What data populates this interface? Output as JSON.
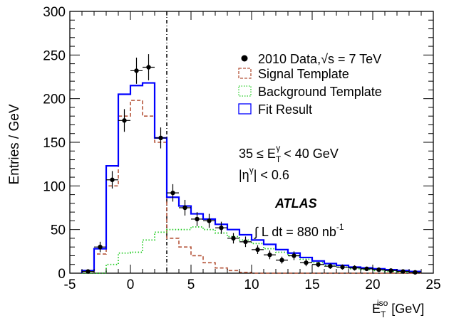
{
  "chart_data": {
    "type": "histogram",
    "xlabel": {
      "main": "E",
      "sub": "T",
      "sup": "iso",
      "unit": " [GeV]"
    },
    "ylabel": "Entries / GeV",
    "xlim": [
      -5,
      25
    ],
    "ylim": [
      0,
      300
    ],
    "xticks": [
      -5,
      0,
      5,
      10,
      15,
      20,
      25
    ],
    "yticks": [
      0,
      50,
      100,
      150,
      200,
      250,
      300
    ],
    "xtick_labels": [
      "-5",
      "0",
      "5",
      "10",
      "15",
      "20",
      "25"
    ],
    "ytick_labels": [
      "0",
      "50",
      "100",
      "150",
      "200",
      "250",
      "300"
    ],
    "cut_line_x": 3,
    "bin_edges": [
      -4,
      -3,
      -2,
      -1,
      0,
      1,
      2,
      3,
      4,
      5,
      6,
      7,
      8,
      9,
      10,
      11,
      12,
      13,
      14,
      15,
      16,
      17,
      18,
      19,
      20,
      21,
      22,
      23,
      24
    ],
    "series": [
      {
        "name": "Fit Result",
        "style": "step",
        "color": "#0000ff",
        "values": [
          3,
          28,
          123,
          205,
          215,
          218,
          155,
          87,
          77,
          68,
          62,
          56,
          50,
          44,
          38,
          33,
          27,
          23,
          18,
          14,
          11,
          9,
          7,
          6,
          5,
          4,
          3,
          2
        ]
      },
      {
        "name": "Signal Template",
        "style": "step-dashed",
        "color": "#b5553a",
        "values": [
          2,
          22,
          100,
          180,
          198,
          180,
          150,
          40,
          30,
          20,
          12,
          6,
          3,
          1,
          0,
          0,
          0,
          0,
          0,
          0,
          0,
          0,
          0,
          0,
          0,
          0,
          0,
          0
        ]
      },
      {
        "name": "Background Template",
        "style": "step-dotted",
        "color": "#22cc22",
        "values": [
          0,
          0,
          10,
          23,
          24,
          38,
          47,
          50,
          50,
          53,
          50,
          46,
          42,
          38,
          34,
          28,
          24,
          20,
          16,
          12,
          9,
          7,
          5,
          4,
          3,
          2,
          1,
          1
        ]
      },
      {
        "name": "2010 Data,",
        "name_math": "√s = 7 TeV",
        "style": "points",
        "color": "#000000",
        "x": [
          -3.5,
          -2.5,
          -1.5,
          -0.5,
          0.5,
          1.5,
          2.5,
          3.5,
          4.5,
          5.5,
          6.5,
          7.5,
          8.5,
          9.5,
          10.5,
          11.5,
          12.5,
          13.5,
          14.5,
          15.5,
          16.5,
          17.5,
          18.5,
          19.5,
          20.5,
          21.5,
          22.5,
          23.5
        ],
        "y": [
          2,
          30,
          107,
          175,
          232,
          236,
          155,
          92,
          75,
          62,
          60,
          52,
          40,
          36,
          27,
          21,
          15,
          20,
          12,
          10,
          8,
          7,
          6,
          5,
          4,
          3,
          2,
          1
        ],
        "err": [
          2,
          6,
          10,
          13,
          15,
          15,
          12,
          10,
          9,
          8,
          8,
          7,
          6,
          6,
          5,
          5,
          4,
          5,
          4,
          3,
          3,
          3,
          3,
          2,
          2,
          2,
          2,
          1
        ]
      }
    ],
    "legend": {
      "placement": "top-right"
    },
    "annotations": {
      "range_lo": "35 ≤ E",
      "range_sub": "T",
      "range_sup": "γ",
      "range_hi": " < 40 GeV",
      "eta_pre": "|η",
      "eta_sup": "γ",
      "eta_post": "| < 0.6",
      "experiment": "ATLAS",
      "lumi_pre": "∫ L dt = 880 nb",
      "lumi_sup": "-1"
    }
  }
}
